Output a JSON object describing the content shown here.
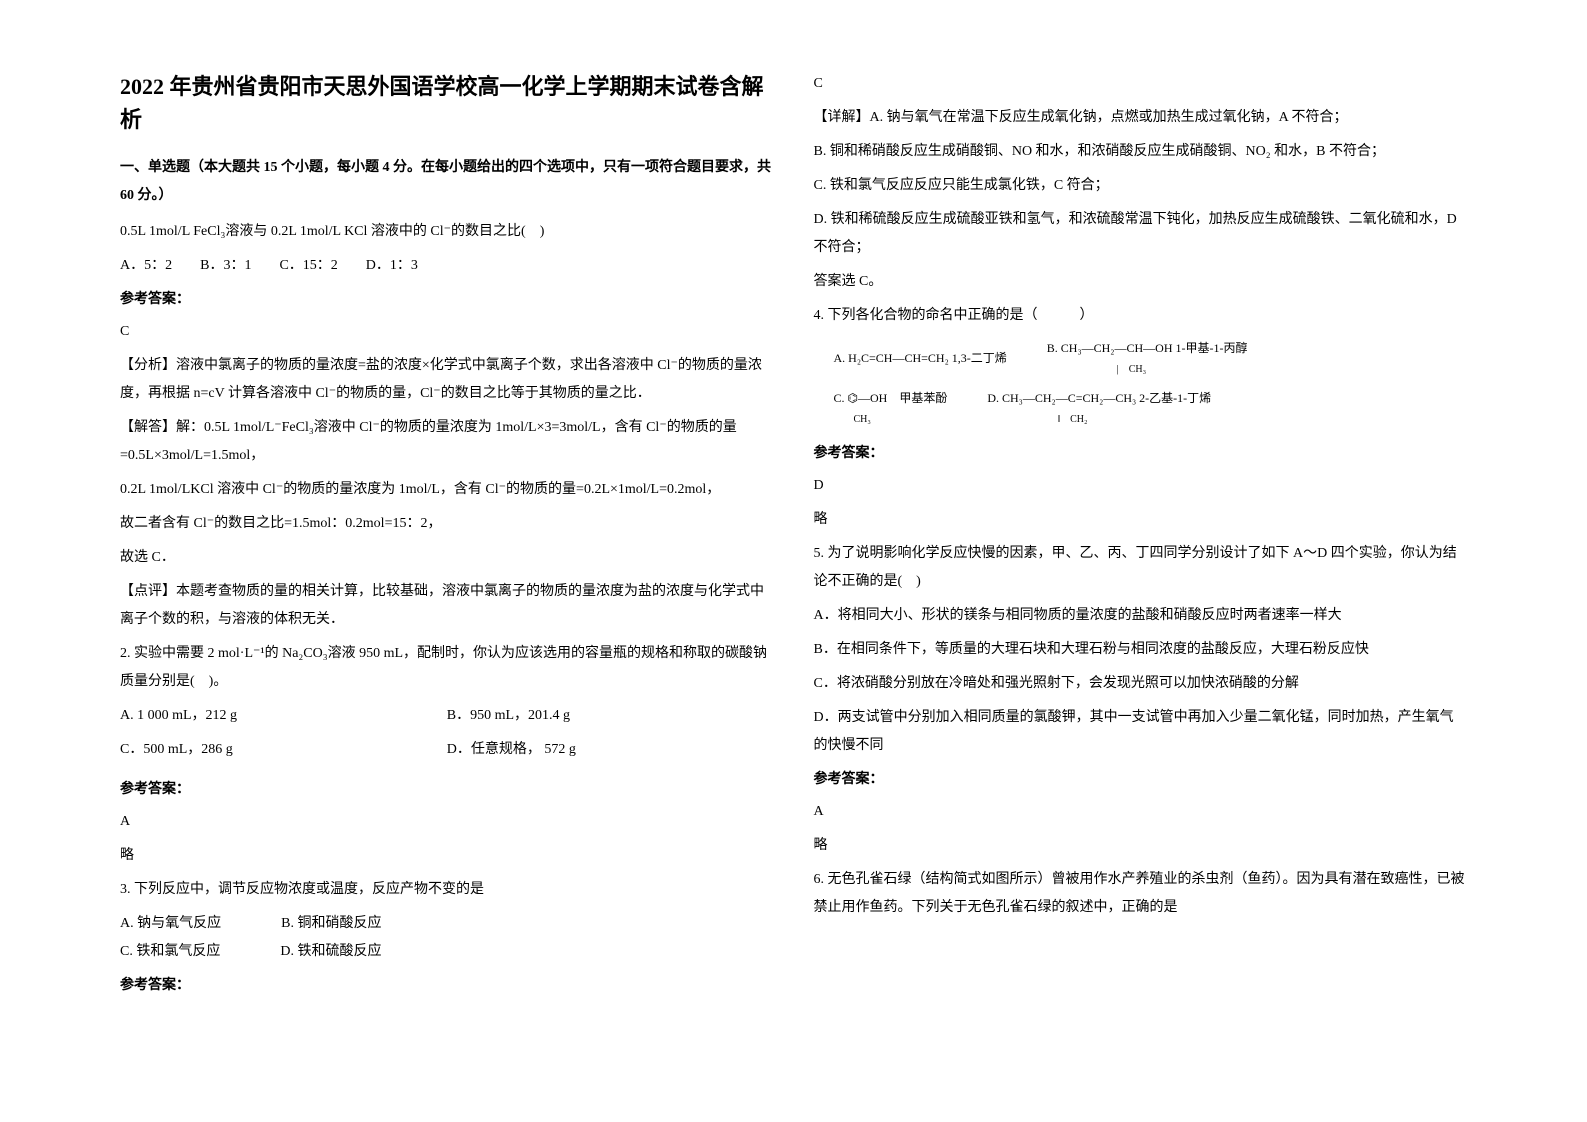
{
  "title": "2022 年贵州省贵阳市天思外国语学校高一化学上学期期末试卷含解析",
  "section1_head": "一、单选题（本大题共 15 个小题，每小题 4 分。在每小题给出的四个选项中，只有一项符合题目要求，共 60 分。）",
  "q1": {
    "stem": "0.5L 1mol/L FeCl₃溶液与 0.2L 1mol/L KCl 溶液中的 Cl⁻的数目之比(　)",
    "opts": "A．5：2　　B．3：1　　C．15：2　　D．1：3",
    "ans_label": "参考答案：",
    "ans": "C",
    "analysis1": "【分析】溶液中氯离子的物质的量浓度=盐的浓度×化学式中氯离子个数，求出各溶液中 Cl⁻的物质的量浓度，再根据 n=cV 计算各溶液中 Cl⁻的物质的量，Cl⁻的数目之比等于其物质的量之比．",
    "analysis2": "【解答】解：0.5L 1mol/L⁻FeCl₃溶液中 Cl⁻的物质的量浓度为 1mol/L×3=3mol/L，含有 Cl⁻的物质的量=0.5L×3mol/L=1.5mol，",
    "analysis3": "0.2L 1mol/LKCl 溶液中 Cl⁻的物质的量浓度为 1mol/L，含有 Cl⁻的物质的量=0.2L×1mol/L=0.2mol，",
    "analysis4": "故二者含有 Cl⁻的数目之比=1.5mol：0.2mol=15：2，",
    "analysis5": "故选 C．",
    "comment": "【点评】本题考查物质的量的相关计算，比较基础，溶液中氯离子的物质的量浓度为盐的浓度与化学式中离子个数的积，与溶液的体积无关．"
  },
  "q2": {
    "stem": "2. 实验中需要 2 mol·L⁻¹的 Na₂CO₃溶液 950 mL，配制时，你认为应该选用的容量瓶的规格和称取的碳酸钠质量分别是(　)。",
    "optA": "A. 1 000 mL，212 g",
    "optB": "B．950 mL，201.4 g",
    "optC": "C．500 mL，286 g",
    "optD": "D．任意规格，  572 g",
    "ans_label": "参考答案：",
    "ans": "A",
    "note": "略"
  },
  "q3": {
    "stem": "3. 下列反应中，调节反应物浓度或温度，反应产物不变的是",
    "optA": "A. 钠与氧气反应",
    "optB": "B. 铜和硝酸反应",
    "optC": "C. 铁和氯气反应",
    "optD": "D. 铁和硫酸反应",
    "ans_label": "参考答案：",
    "ans": "C",
    "detailA": "【详解】A. 钠与氧气在常温下反应生成氧化钠，点燃或加热生成过氧化钠，A 不符合；",
    "detailB": "B. 铜和稀硝酸反应生成硝酸铜、NO 和水，和浓硝酸反应生成硝酸铜、NO₂ 和水，B 不符合；",
    "detailC": "C. 铁和氯气反应反应只能生成氯化铁，C 符合；",
    "detailD": "D. 铁和稀硫酸反应生成硫酸亚铁和氢气，和浓硫酸常温下钝化，加热反应生成硫酸铁、二氧化硫和水，D 不符合；",
    "conclude": "答案选 C。"
  },
  "q4": {
    "stem": "4. 下列各化合物的命名中正确的是（　　　）",
    "fA_lab": "A.",
    "fA": "H₂C=CH—CH=CH₂   1,3-二丁烯",
    "fB_lab": "B.",
    "fB": "CH₃—CH₂—CH—OH    1-甲基-1-丙醇",
    "fB2": "　　　　　　　|　CH₃",
    "fC_lab": "C.",
    "fC": "⌬—OH　甲基苯酚",
    "fC2": "　　CH₃",
    "fD_lab": "D.",
    "fD": "CH₃—CH₂—C=CH₂—CH₃   2-乙基-1-丁烯",
    "fD2": "　　　　　　　‖　CH₂",
    "ans_label": "参考答案：",
    "ans": "D",
    "note": "略"
  },
  "q5": {
    "stem": "5. 为了说明影响化学反应快慢的因素，甲、乙、丙、丁四同学分别设计了如下 A～D 四个实验，你认为结论不正确的是(　)",
    "optA": "A．将相同大小、形状的镁条与相同物质的量浓度的盐酸和硝酸反应时两者速率一样大",
    "optB": "B．在相同条件下，等质量的大理石块和大理石粉与相同浓度的盐酸反应，大理石粉反应快",
    "optC": "C．将浓硝酸分别放在冷暗处和强光照射下，会发现光照可以加快浓硝酸的分解",
    "optD": "D．两支试管中分别加入相同质量的氯酸钾，其中一支试管中再加入少量二氧化锰，同时加热，产生氧气的快慢不同",
    "ans_label": "参考答案：",
    "ans": "A",
    "note": "略"
  },
  "q6": {
    "stem": "6. 无色孔雀石绿（结构简式如图所示）曾被用作水产养殖业的杀虫剂（鱼药）。因为具有潜在致癌性，已被禁止用作鱼药。下列关于无色孔雀石绿的叙述中，正确的是"
  }
}
